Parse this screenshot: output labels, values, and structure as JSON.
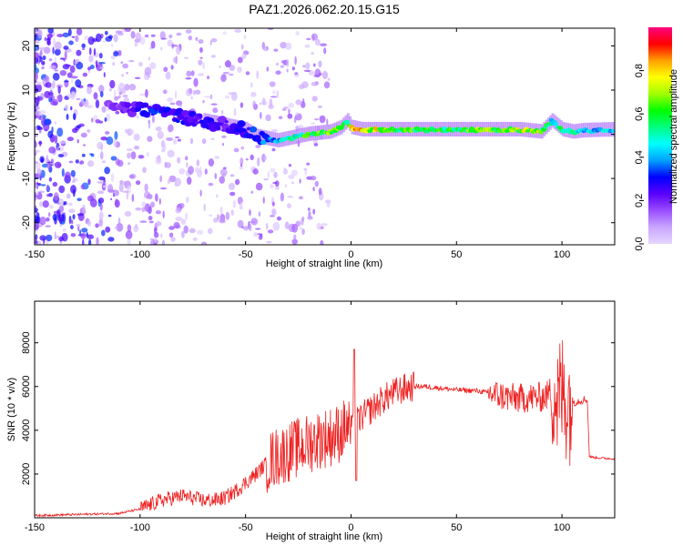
{
  "title": "PAZ1.2026.062.20.15.G15",
  "chart_data": [
    {
      "type": "heatmap",
      "name": "spectrogram",
      "xlabel": "Height of straight line (km)",
      "ylabel": "Frequency (Hz)",
      "xlim": [
        -150,
        125
      ],
      "ylim": [
        -25,
        24
      ],
      "xticks": [
        -150,
        -100,
        -50,
        0,
        50,
        100
      ],
      "yticks": [
        -20,
        -10,
        0,
        10,
        20
      ],
      "colorbar": {
        "label": "Normalized spectral amplitude",
        "range": [
          0,
          1
        ],
        "ticks": [
          0.0,
          0.2,
          0.4,
          0.6,
          0.8
        ],
        "colormap": [
          "#e6d6ff",
          "#c9a6ff",
          "#9a4dff",
          "#5a00ff",
          "#0000ff",
          "#00a0ff",
          "#00ffff",
          "#00ff80",
          "#00ff00",
          "#a0ff00",
          "#ffff00",
          "#ffa000",
          "#ff0000",
          "#ff0080"
        ]
      },
      "ridge": {
        "x": [
          -150,
          -130,
          -110,
          -100,
          -90,
          -80,
          -70,
          -60,
          -50,
          -45,
          -40,
          -35,
          -30,
          -25,
          -20,
          -10,
          -5,
          -2,
          0,
          5,
          10,
          20,
          40,
          60,
          80,
          90,
          95,
          100,
          105,
          110,
          125
        ],
        "y": [
          10,
          8,
          6,
          5.5,
          5,
          4,
          3,
          2,
          1,
          -0.5,
          -1,
          -1.5,
          -1,
          -0.5,
          0,
          0.5,
          1.5,
          3,
          1.5,
          1,
          1,
          1,
          1,
          1,
          1,
          0.5,
          3,
          1,
          0.5,
          0.8,
          1
        ],
        "amplitude": [
          0.1,
          0.15,
          0.2,
          0.3,
          0.35,
          0.3,
          0.3,
          0.25,
          0.3,
          0.35,
          0.4,
          0.45,
          0.55,
          0.6,
          0.7,
          0.75,
          0.8,
          0.6,
          0.85,
          0.9,
          0.85,
          0.7,
          0.65,
          0.7,
          0.8,
          0.75,
          0.5,
          0.6,
          0.55,
          0.5,
          0.5
        ]
      }
    },
    {
      "type": "line",
      "name": "snr",
      "xlabel": "Height of straight line (km)",
      "ylabel": "SNR (10 * v/v)",
      "xlim": [
        -150,
        125
      ],
      "ylim": [
        0,
        9900
      ],
      "xticks": [
        -150,
        -100,
        -50,
        0,
        50,
        100
      ],
      "yticks": [
        2000,
        4000,
        6000,
        8000
      ],
      "color": "#ee2222",
      "x": [
        -150,
        -130,
        -110,
        -100,
        -95,
        -90,
        -85,
        -80,
        -75,
        -70,
        -65,
        -60,
        -55,
        -50,
        -45,
        -40,
        -35,
        -30,
        -25,
        -20,
        -15,
        -10,
        -5,
        -2,
        0,
        2,
        5,
        10,
        15,
        20,
        25,
        30,
        35,
        40,
        50,
        60,
        65,
        70,
        75,
        80,
        85,
        90,
        93,
        96,
        98,
        100,
        103,
        106,
        110,
        112,
        113,
        116,
        120,
        125
      ],
      "y": [
        100,
        150,
        200,
        400,
        600,
        800,
        900,
        1000,
        900,
        800,
        800,
        900,
        1200,
        1600,
        2000,
        2500,
        2800,
        3000,
        3200,
        3400,
        3600,
        3700,
        3900,
        4200,
        4000,
        4300,
        4600,
        5000,
        5400,
        5700,
        5900,
        6000,
        6000,
        5950,
        5850,
        5800,
        5700,
        5600,
        5500,
        5450,
        5500,
        5500,
        5600,
        6000,
        5200,
        5700,
        5400,
        5300,
        5400,
        5400,
        2800,
        2750,
        2720,
        2700
      ]
    }
  ]
}
